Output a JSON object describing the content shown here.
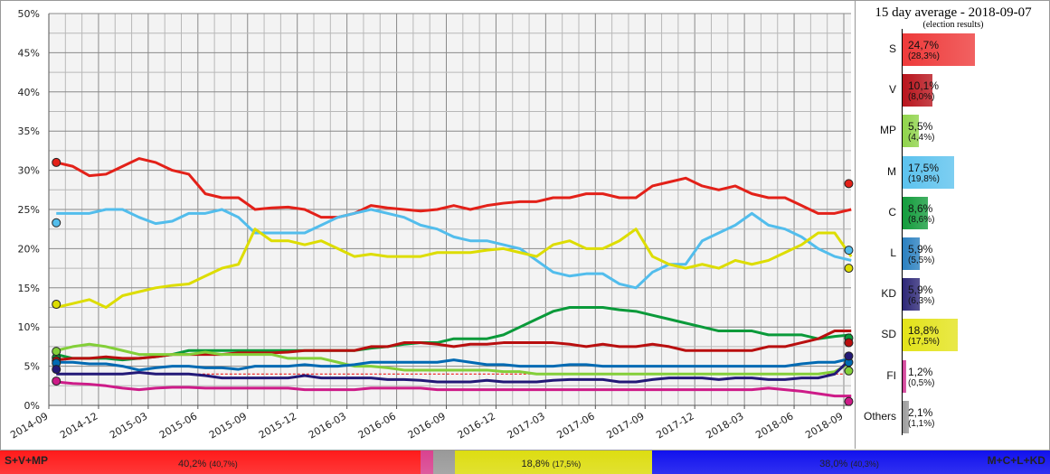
{
  "chart_data": {
    "type": "line",
    "ylim": [
      0,
      50
    ],
    "yticks": [
      "0%",
      "5%",
      "10%",
      "15%",
      "20%",
      "25%",
      "30%",
      "35%",
      "40%",
      "45%",
      "50%"
    ],
    "xrange": [
      "2014-09",
      "2018-09"
    ],
    "xticks": [
      "2014-09",
      "2014-12",
      "2015-03",
      "2015-06",
      "2015-09",
      "2015-12",
      "2016-03",
      "2016-06",
      "2016-09",
      "2016-12",
      "2017-03",
      "2017-06",
      "2017-09",
      "2017-12",
      "2018-03",
      "2018-06",
      "2018-09"
    ],
    "grid": true,
    "threshold": 4,
    "months": [
      "2014-09",
      "2014-10",
      "2014-11",
      "2014-12",
      "2015-01",
      "2015-02",
      "2015-03",
      "2015-04",
      "2015-05",
      "2015-06",
      "2015-07",
      "2015-08",
      "2015-09",
      "2015-10",
      "2015-11",
      "2015-12",
      "2016-01",
      "2016-02",
      "2016-03",
      "2016-04",
      "2016-05",
      "2016-06",
      "2016-07",
      "2016-08",
      "2016-09",
      "2016-10",
      "2016-11",
      "2016-12",
      "2017-01",
      "2017-02",
      "2017-03",
      "2017-04",
      "2017-05",
      "2017-06",
      "2017-07",
      "2017-08",
      "2017-09",
      "2017-10",
      "2017-11",
      "2017-12",
      "2018-01",
      "2018-02",
      "2018-03",
      "2018-04",
      "2018-05",
      "2018-06",
      "2018-07",
      "2018-08",
      "2018-09"
    ],
    "series": [
      {
        "name": "S",
        "color": "#e32119",
        "values": [
          31,
          30.5,
          29.3,
          29.5,
          30.5,
          31.5,
          31,
          30,
          29.5,
          27,
          26.5,
          26.5,
          25,
          25.2,
          25.3,
          25,
          24,
          24,
          24.5,
          25.5,
          25.2,
          25,
          24.8,
          25,
          25.5,
          25,
          25.5,
          25.8,
          26,
          26,
          26.5,
          26.5,
          27,
          27,
          26.5,
          26.5,
          28,
          28.5,
          29,
          28,
          27.5,
          28,
          27,
          26.5,
          26.5,
          25.5,
          24.5,
          24.5,
          25
        ],
        "election_2014": 31.0,
        "election_2018": 28.3
      },
      {
        "name": "M",
        "color": "#52bdec",
        "values": [
          24.5,
          24.5,
          24.5,
          25,
          25,
          24,
          23.2,
          23.5,
          24.5,
          24.5,
          25,
          24,
          22,
          22,
          22,
          22,
          23,
          24,
          24.5,
          25,
          24.5,
          24,
          23,
          22.5,
          21.5,
          21,
          21,
          20.5,
          20,
          18.5,
          17,
          16.5,
          16.8,
          16.8,
          15.5,
          15,
          17,
          18,
          18,
          21,
          22,
          23,
          24.5,
          23,
          22.5,
          21.5,
          20,
          19,
          18.5
        ],
        "election_2014": 23.3,
        "election_2018": 19.8
      },
      {
        "name": "SD",
        "color": "#dddd00",
        "values": [
          12.5,
          13,
          13.5,
          12.5,
          14,
          14.5,
          15,
          15.3,
          15.5,
          16.5,
          17.5,
          18,
          22.5,
          21,
          21,
          20.5,
          21,
          20,
          19,
          19.3,
          19,
          19,
          19,
          19.5,
          19.5,
          19.5,
          19.8,
          20,
          19.5,
          19,
          20.5,
          21,
          20,
          20,
          21,
          22.5,
          19,
          18,
          17.5,
          18,
          17.5,
          18.5,
          18,
          18.5,
          19.5,
          20.5,
          22,
          22,
          19
        ],
        "election_2014": 12.9,
        "election_2018": 17.5
      },
      {
        "name": "C",
        "color": "#0a9a3a",
        "values": [
          6.5,
          6,
          6,
          6,
          5.8,
          6,
          6.2,
          6.5,
          7,
          7,
          7,
          7,
          7,
          7,
          7,
          7,
          7,
          7,
          7,
          7.3,
          7.5,
          7.8,
          8,
          8,
          8.5,
          8.5,
          8.5,
          9,
          10,
          11,
          12,
          12.5,
          12.5,
          12.5,
          12.2,
          12,
          11.5,
          11,
          10.5,
          10,
          9.5,
          9.5,
          9.5,
          9,
          9,
          9,
          8.5,
          8.8,
          9
        ],
        "election_2014": 6.1,
        "election_2018": 8.6
      },
      {
        "name": "V",
        "color": "#b90f0f",
        "values": [
          5.8,
          6,
          6,
          6.2,
          6,
          6,
          6.2,
          6.5,
          6.5,
          6.5,
          6.5,
          6.7,
          6.7,
          6.7,
          6.8,
          7,
          7,
          7,
          7,
          7.5,
          7.5,
          8,
          8,
          7.8,
          7.5,
          7.8,
          7.8,
          8,
          8,
          8,
          8,
          7.8,
          7.5,
          7.8,
          7.5,
          7.5,
          7.8,
          7.5,
          7,
          7,
          7,
          7,
          7,
          7.5,
          7.5,
          8,
          8.5,
          9.5,
          9.5
        ],
        "election_2014": 5.7,
        "election_2018": 8.0
      },
      {
        "name": "MP",
        "color": "#83cf39",
        "values": [
          7,
          7.5,
          7.8,
          7.5,
          7,
          6.5,
          6.5,
          6.5,
          6.5,
          6.8,
          6.5,
          6.5,
          6.5,
          6.5,
          6,
          6,
          6,
          5.5,
          5,
          5,
          4.8,
          4.5,
          4.5,
          4.5,
          4.5,
          4.5,
          4.5,
          4.3,
          4.3,
          4,
          4,
          4,
          4,
          4,
          4,
          4,
          4,
          4,
          4,
          4,
          4,
          4,
          4,
          4,
          4,
          4,
          4,
          4.3,
          5.5
        ],
        "election_2014": 6.9,
        "election_2018": 4.4
      },
      {
        "name": "L",
        "color": "#006ab3",
        "values": [
          5.5,
          5.5,
          5.3,
          5.3,
          5,
          4.5,
          4.8,
          5,
          5,
          4.8,
          4.8,
          4.6,
          5,
          5,
          5,
          5.2,
          5,
          5,
          5.2,
          5.5,
          5.5,
          5.5,
          5.5,
          5.5,
          5.8,
          5.5,
          5.2,
          5.2,
          5,
          5,
          5,
          5.2,
          5.2,
          5,
          5,
          5,
          5,
          5,
          5,
          5,
          5,
          5,
          5,
          5,
          5,
          5.3,
          5.5,
          5.5,
          6
        ],
        "election_2014": 5.4,
        "election_2018": 5.5
      },
      {
        "name": "KD",
        "color": "#231977",
        "values": [
          4,
          4,
          4,
          4,
          4,
          4.2,
          4,
          4,
          4,
          3.8,
          3.5,
          3.5,
          3.5,
          3.5,
          3.5,
          3.8,
          3.5,
          3.5,
          3.5,
          3.5,
          3.3,
          3.3,
          3.2,
          3,
          3,
          3,
          3.2,
          3,
          3,
          3,
          3.2,
          3.3,
          3.3,
          3.3,
          3,
          3,
          3.3,
          3.5,
          3.5,
          3.5,
          3.3,
          3.5,
          3.5,
          3.3,
          3.3,
          3.5,
          3.5,
          4,
          6
        ],
        "election_2014": 4.6,
        "election_2018": 6.3
      },
      {
        "name": "FI",
        "color": "#cd1b88",
        "values": [
          3,
          2.8,
          2.7,
          2.5,
          2.2,
          2,
          2.2,
          2.3,
          2.3,
          2.2,
          2.2,
          2.2,
          2.2,
          2.2,
          2.2,
          2,
          2,
          2,
          2,
          2.2,
          2.2,
          2.2,
          2.2,
          2,
          2,
          2,
          2,
          2,
          2,
          2,
          2,
          2,
          2,
          2,
          2,
          2,
          2,
          2,
          2,
          2,
          2,
          2,
          2,
          2.2,
          2,
          1.8,
          1.5,
          1.2,
          1.2
        ],
        "election_2014": 3.1,
        "election_2018": 0.5
      }
    ]
  },
  "panel": {
    "title": "15 day average - 2018-09-07",
    "subtitle": "(election results)",
    "bars": [
      {
        "party": "S",
        "value": 24.7,
        "label": "24,7%",
        "result": "(28,3%)",
        "color": "#ee3a3a"
      },
      {
        "party": "V",
        "value": 10.1,
        "label": "10,1%",
        "result": "(8,0%)",
        "color": "#b8141c"
      },
      {
        "party": "MP",
        "value": 5.5,
        "label": "5,5%",
        "result": "(4,4%)",
        "color": "#8fd34a"
      },
      {
        "party": "M",
        "value": 17.5,
        "label": "17,5%",
        "result": "(19,8%)",
        "color": "#5cc2ee"
      },
      {
        "party": "C",
        "value": 8.6,
        "label": "8,6%",
        "result": "(8,6%)",
        "color": "#139c3c"
      },
      {
        "party": "L",
        "value": 5.9,
        "label": "5,9%",
        "result": "(5,5%)",
        "color": "#2a80c0"
      },
      {
        "party": "KD",
        "value": 5.9,
        "label": "5,9%",
        "result": "(6,3%)",
        "color": "#2d2777"
      },
      {
        "party": "SD",
        "value": 18.8,
        "label": "18,8%",
        "result": "(17,5%)",
        "color": "#e3e31a"
      },
      {
        "party": "FI",
        "value": 1.2,
        "label": "1,2%",
        "result": "(0,5%)",
        "color": "#cf3c95"
      },
      {
        "party": "Others",
        "value": 2.1,
        "label": "2,1%",
        "result": "(1,1%)",
        "color": "#9a9a9a"
      }
    ]
  },
  "blocks": {
    "left": {
      "name": "S+V+MP",
      "value": 40.2,
      "label": "40,2%",
      "result": "(40,7%)",
      "color": "#ff1a1a"
    },
    "fi": {
      "value": 1.2,
      "color": "#d9428f"
    },
    "others": {
      "value": 2.1,
      "color": "#999999"
    },
    "sd": {
      "value": 18.8,
      "label": "18,8%",
      "result": "(17,5%)",
      "color": "#dddd11"
    },
    "right": {
      "name": "M+C+L+KD",
      "value": 38.0,
      "label": "38,0%",
      "result": "(40,3%)",
      "color": "#1111ee"
    }
  }
}
